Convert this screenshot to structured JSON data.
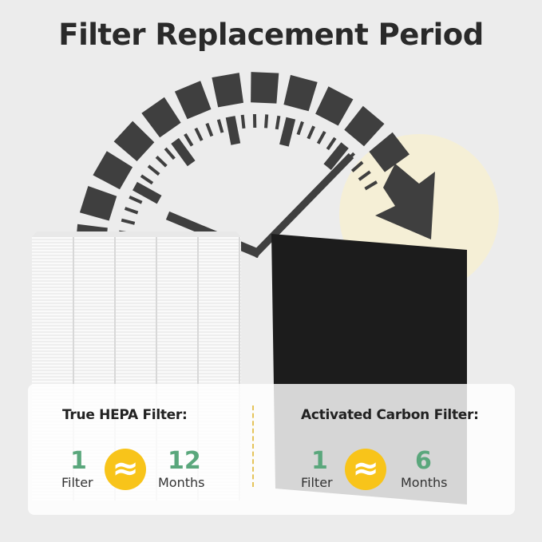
{
  "title": "Filter Replacement Period",
  "colors": {
    "accent_green": "#5aa77c",
    "accent_yellow": "#f8c41a",
    "gauge": "#3f3f3f"
  },
  "icons": {
    "approx": "approximately-equal-icon",
    "arrow": "clockwise-arrow-icon"
  },
  "hepa": {
    "heading": "True HEPA Filter:",
    "filter_count": "1",
    "filter_label": "Filter",
    "months": "12",
    "months_label": "Months",
    "approx_symbol": "≈"
  },
  "carbon": {
    "heading": "Activated Carbon Filter:",
    "filter_count": "1",
    "filter_label": "Filter",
    "months": "6",
    "months_label": "Months",
    "approx_symbol": "≈"
  }
}
